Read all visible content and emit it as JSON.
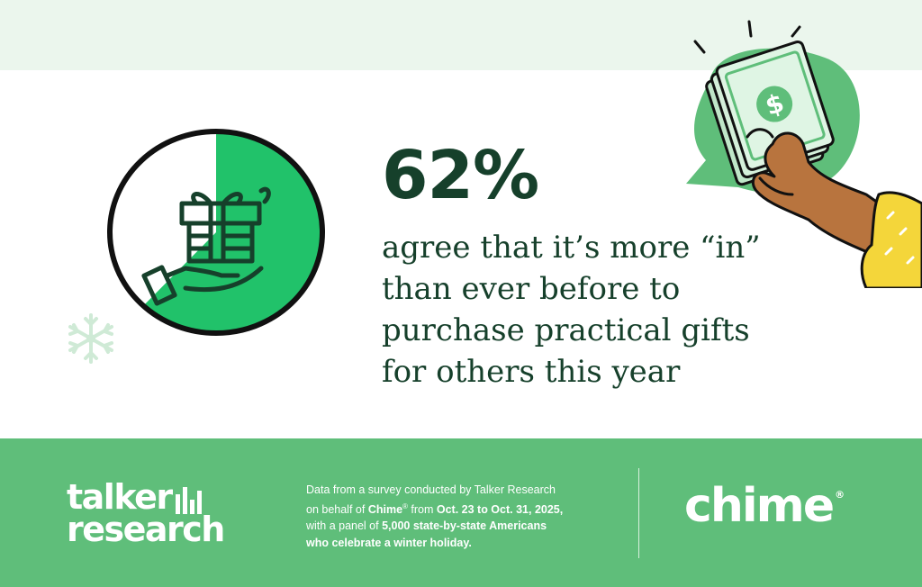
{
  "stat": {
    "value": "62%",
    "share": 0.62,
    "text_lines": [
      "agree that it’s more “in”",
      "than ever before to",
      "purchase practical gifts",
      "for others this year"
    ]
  },
  "colors": {
    "dark_green": "#16402b",
    "accent_green": "#21c26a",
    "footer_green": "#5fbe7a",
    "top_band": "#ebf6ed",
    "skin": "#b8743e",
    "sleeve": "#f4d63a"
  },
  "icons": {
    "pie_center": "gift-in-hand-icon",
    "decoration": "snowflake-icon",
    "illustration": "hand-holding-money-icon",
    "money_symbol": "dollar-icon"
  },
  "footer": {
    "talker_line1": "talker",
    "talker_line2": "research",
    "source_parts": {
      "l1": "Data from a survey conducted by Talker Research",
      "l2_a": "on behalf of ",
      "l2_brand": "Chime",
      "l2_reg": "®",
      "l2_b": " from ",
      "l2_dates": "Oct. 23 to Oct. 31, 2025,",
      "l3_a": "with a panel of ",
      "l3_b": "5,000 state-by-state Americans",
      "l4": "who celebrate a winter holiday."
    },
    "chime_word": "chime",
    "chime_reg": "®"
  }
}
